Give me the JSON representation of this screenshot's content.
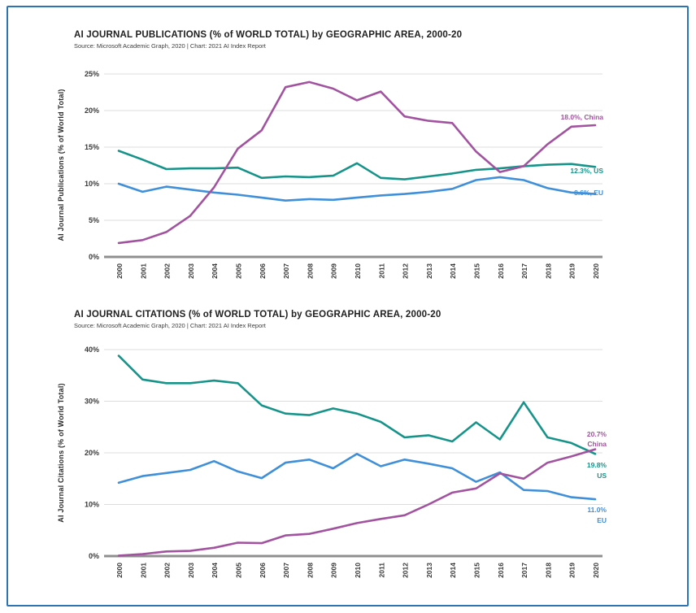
{
  "page": {
    "border_color": "#2e74b5",
    "background": "#ffffff"
  },
  "chart_data": [
    {
      "type": "line",
      "title": "AI JOURNAL PUBLICATIONS (% of WORLD TOTAL) by GEOGRAPHIC AREA, 2000-20",
      "source": "Source: Microsoft Academic Graph, 2020 | Chart: 2021 AI Index Report",
      "ylabel": "AI Journal Publications (% of World Total)",
      "xlabel": "",
      "ylim": [
        0,
        25
      ],
      "ytick_step": 5,
      "grid": true,
      "legend_position": "end-of-line-labels",
      "x": [
        "2000",
        "2001",
        "2002",
        "2003",
        "2004",
        "2005",
        "2006",
        "2007",
        "2008",
        "2009",
        "2010",
        "2011",
        "2012",
        "2013",
        "2014",
        "2015",
        "2016",
        "2017",
        "2018",
        "2019",
        "2020"
      ],
      "series": [
        {
          "name": "US",
          "color": "#17948a",
          "values": [
            14.5,
            13.3,
            12.0,
            12.1,
            12.1,
            12.2,
            10.8,
            11.0,
            10.9,
            11.1,
            12.8,
            10.8,
            10.6,
            11.0,
            11.4,
            11.9,
            12.1,
            12.4,
            12.6,
            12.7,
            12.3
          ],
          "end_label_lines": [
            "12.3%, US"
          ]
        },
        {
          "name": "EU",
          "color": "#3f8fd9",
          "values": [
            10.0,
            8.9,
            9.6,
            9.2,
            8.8,
            8.5,
            8.1,
            7.7,
            7.9,
            7.8,
            8.1,
            8.4,
            8.6,
            8.9,
            9.3,
            10.5,
            10.9,
            10.5,
            9.4,
            8.8,
            8.6
          ],
          "end_label_lines": [
            "8.6%, EU"
          ]
        },
        {
          "name": "China",
          "color": "#a2539f",
          "values": [
            1.9,
            2.3,
            3.4,
            5.6,
            9.5,
            14.8,
            17.3,
            23.2,
            23.9,
            23.0,
            21.4,
            22.6,
            19.2,
            18.6,
            18.3,
            14.4,
            11.6,
            12.4,
            15.4,
            17.8,
            18.0
          ],
          "end_label_lines": [
            "18.0%, China"
          ]
        }
      ]
    },
    {
      "type": "line",
      "title": "AI JOURNAL CITATIONS (% of WORLD TOTAL) by GEOGRAPHIC AREA, 2000-20",
      "source": "Source: Microsoft Academic Graph, 2020 | Chart: 2021 AI Index Report",
      "ylabel": "AI Journal Citations (% of World Total)",
      "xlabel": "",
      "ylim": [
        0,
        40
      ],
      "ytick_step": 10,
      "grid": true,
      "legend_position": "end-of-line-labels",
      "x": [
        "2000",
        "2001",
        "2002",
        "2003",
        "2004",
        "2005",
        "2006",
        "2007",
        "2008",
        "2009",
        "2010",
        "2011",
        "2012",
        "2013",
        "2014",
        "2015",
        "2016",
        "2017",
        "2018",
        "2019",
        "2020"
      ],
      "series": [
        {
          "name": "US",
          "color": "#17948a",
          "values": [
            38.8,
            34.2,
            33.5,
            33.5,
            34.0,
            33.5,
            29.2,
            27.6,
            27.3,
            28.6,
            27.6,
            26.0,
            23.0,
            23.4,
            22.2,
            25.9,
            22.6,
            29.8,
            23.0,
            21.9,
            19.8
          ],
          "end_label_lines": [
            "19.8%",
            "US"
          ]
        },
        {
          "name": "EU",
          "color": "#3f8fd9",
          "values": [
            14.2,
            15.5,
            16.1,
            16.7,
            18.4,
            16.4,
            15.1,
            18.1,
            18.7,
            17.0,
            19.8,
            17.4,
            18.7,
            17.9,
            17.0,
            14.4,
            16.2,
            12.8,
            12.6,
            11.4,
            11.0
          ],
          "end_label_lines": [
            "11.0%",
            "EU"
          ]
        },
        {
          "name": "China",
          "color": "#a2539f",
          "values": [
            0.1,
            0.4,
            0.9,
            1.0,
            1.6,
            2.6,
            2.5,
            4.0,
            4.3,
            5.3,
            6.4,
            7.2,
            7.9,
            10.0,
            12.3,
            13.1,
            16.0,
            15.0,
            18.1,
            19.3,
            20.7
          ],
          "end_label_lines": [
            "20.7%",
            "China"
          ]
        }
      ]
    }
  ]
}
